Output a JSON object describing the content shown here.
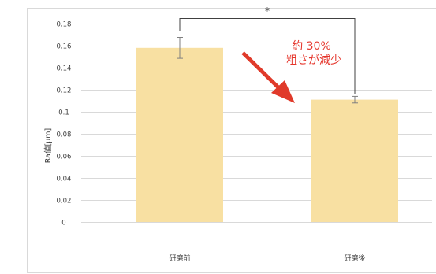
{
  "chart_data": {
    "type": "bar",
    "categories": [
      "研磨前",
      "研磨後"
    ],
    "values": [
      0.158,
      0.111
    ],
    "error": [
      0.0095,
      0.003
    ],
    "ylabel": "Ra値[μm]",
    "xlabel": "",
    "title": "",
    "ylim": [
      0,
      0.18
    ],
    "yticks": [
      0,
      0.02,
      0.04,
      0.06,
      0.08,
      0.1,
      0.12,
      0.14,
      0.16,
      0.18
    ],
    "ytick_labels": [
      "0",
      "0.02",
      "0.04",
      "0.06",
      "0.08",
      "0.1",
      "0.12",
      "0.14",
      "0.16",
      "0.18"
    ],
    "grid": true,
    "annotation": {
      "line1": "約 30%",
      "line2": "粗さが減少",
      "significance": "*"
    },
    "colors": {
      "bar": "#f8e0a2",
      "grid": "#d9d9d9",
      "error_bar": "#7f7f7f",
      "annotation": "#e5352b",
      "arrow": "#e03a2a",
      "bracket": "#404040",
      "frame": "#d9d9d9"
    }
  }
}
